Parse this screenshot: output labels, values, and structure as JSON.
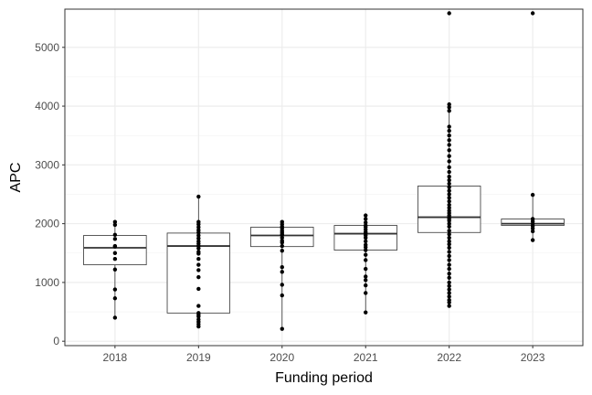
{
  "chart_data": {
    "type": "box",
    "xlabel": "Funding period",
    "ylabel": "APC",
    "categories": [
      "2018",
      "2019",
      "2020",
      "2021",
      "2022",
      "2023"
    ],
    "ylim": [
      -75,
      5650
    ],
    "yticks": [
      0,
      1000,
      2000,
      3000,
      4000,
      5000
    ],
    "grid": true,
    "boxes": [
      {
        "category": "2018",
        "q1": 1300,
        "median": 1590,
        "q3": 1800,
        "whisker_low": 400,
        "whisker_high": 2030
      },
      {
        "category": "2019",
        "q1": 480,
        "median": 1620,
        "q3": 1840,
        "whisker_low": 250,
        "whisker_high": 2460
      },
      {
        "category": "2020",
        "q1": 1610,
        "median": 1800,
        "q3": 1940,
        "whisker_low": 210,
        "whisker_high": 2030
      },
      {
        "category": "2021",
        "q1": 1550,
        "median": 1830,
        "q3": 1970,
        "whisker_low": 490,
        "whisker_high": 2140
      },
      {
        "category": "2022",
        "q1": 1850,
        "median": 2110,
        "q3": 2640,
        "whisker_low": 600,
        "whisker_high": 4030
      },
      {
        "category": "2023",
        "q1": 1970,
        "median": 2000,
        "q3": 2080,
        "whisker_low": 1720,
        "whisker_high": 2490
      }
    ],
    "points": [
      {
        "category": "2018",
        "values": [
          400,
          730,
          880,
          1220,
          1400,
          1500,
          1610,
          1620,
          1740,
          1810,
          1980,
          2030
        ]
      },
      {
        "category": "2019",
        "values": [
          250,
          290,
          330,
          370,
          420,
          450,
          480,
          600,
          890,
          1090,
          1210,
          1300,
          1400,
          1490,
          1520,
          1580,
          1620,
          1660,
          1700,
          1750,
          1800,
          1850,
          1890,
          1940,
          1990,
          2030,
          2460
        ]
      },
      {
        "category": "2020",
        "values": [
          210,
          780,
          960,
          1180,
          1260,
          1540,
          1620,
          1680,
          1710,
          1760,
          1800,
          1820,
          1850,
          1880,
          1920,
          1950,
          1990,
          2030
        ]
      },
      {
        "category": "2021",
        "values": [
          490,
          820,
          950,
          1040,
          1100,
          1230,
          1380,
          1470,
          1550,
          1600,
          1640,
          1700,
          1760,
          1800,
          1830,
          1860,
          1900,
          1940,
          1970,
          2020,
          2080,
          2140
        ]
      },
      {
        "category": "2022",
        "values": [
          600,
          660,
          700,
          760,
          820,
          880,
          940,
          1000,
          1080,
          1150,
          1230,
          1300,
          1380,
          1450,
          1520,
          1590,
          1650,
          1700,
          1760,
          1820,
          1880,
          1950,
          2000,
          2050,
          2080,
          2110,
          2140,
          2180,
          2220,
          2270,
          2320,
          2380,
          2440,
          2500,
          2560,
          2620,
          2680,
          2740,
          2800,
          2880,
          2960,
          3060,
          3150,
          3250,
          3340,
          3420,
          3500,
          3580,
          3650,
          3920,
          3980,
          4030,
          5580
        ]
      },
      {
        "category": "2023",
        "values": [
          1720,
          1870,
          1920,
          1960,
          2000,
          2040,
          2080,
          2490,
          5580
        ]
      }
    ]
  }
}
